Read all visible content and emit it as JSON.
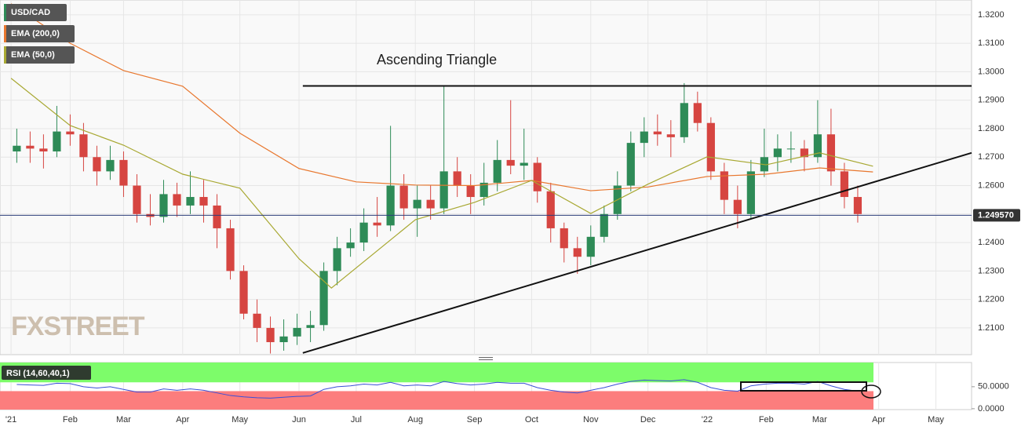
{
  "chart_data": {
    "type": "candlestick",
    "candles": {
      "name": "USD/CAD",
      "legend_color": "#2e8b57",
      "up_color": "#2e8b57",
      "down_color": "#d64541",
      "x": [
        3,
        10,
        17,
        24,
        31,
        38,
        45,
        52,
        59,
        66,
        73,
        80,
        87,
        94,
        101,
        108,
        115,
        122,
        129,
        136,
        143,
        150,
        157,
        164,
        171,
        178,
        185,
        192,
        199,
        206,
        213,
        220,
        227,
        234,
        241,
        248,
        255,
        262,
        269,
        276,
        283,
        290,
        297,
        304,
        311,
        318,
        325,
        332,
        339,
        346,
        353,
        360,
        367,
        374,
        381,
        388,
        395,
        402,
        409,
        416,
        423,
        430,
        437,
        444
      ],
      "open": [
        1.272,
        1.274,
        1.273,
        1.272,
        1.279,
        1.278,
        1.27,
        1.265,
        1.269,
        1.26,
        1.25,
        1.249,
        1.257,
        1.253,
        1.256,
        1.253,
        1.245,
        1.23,
        1.215,
        1.21,
        1.205,
        1.207,
        1.21,
        1.211,
        1.23,
        1.238,
        1.24,
        1.247,
        1.246,
        1.26,
        1.252,
        1.255,
        1.252,
        1.265,
        1.26,
        1.256,
        1.261,
        1.269,
        1.267,
        1.268,
        1.258,
        1.245,
        1.238,
        1.235,
        1.242,
        1.25,
        1.26,
        1.275,
        1.279,
        1.278,
        1.277,
        1.289,
        1.282,
        1.265,
        1.255,
        1.25,
        1.265,
        1.27,
        1.273,
        1.273,
        1.27,
        1.278,
        1.265,
        1.256
      ],
      "high": [
        1.28,
        1.279,
        1.278,
        1.288,
        1.285,
        1.282,
        1.274,
        1.274,
        1.272,
        1.264,
        1.257,
        1.262,
        1.261,
        1.265,
        1.262,
        1.257,
        1.248,
        1.232,
        1.22,
        1.214,
        1.213,
        1.215,
        1.216,
        1.233,
        1.242,
        1.245,
        1.252,
        1.256,
        1.281,
        1.264,
        1.26,
        1.26,
        1.295,
        1.27,
        1.264,
        1.268,
        1.276,
        1.29,
        1.28,
        1.27,
        1.261,
        1.247,
        1.242,
        1.246,
        1.253,
        1.265,
        1.279,
        1.284,
        1.285,
        1.283,
        1.296,
        1.293,
        1.284,
        1.268,
        1.26,
        1.269,
        1.28,
        1.278,
        1.279,
        1.276,
        1.29,
        1.287,
        1.268,
        1.26
      ],
      "low": [
        1.268,
        1.268,
        1.266,
        1.27,
        1.274,
        1.265,
        1.26,
        1.262,
        1.256,
        1.247,
        1.246,
        1.247,
        1.249,
        1.25,
        1.247,
        1.238,
        1.227,
        1.213,
        1.205,
        1.201,
        1.202,
        1.204,
        1.205,
        1.209,
        1.225,
        1.235,
        1.237,
        1.242,
        1.244,
        1.248,
        1.242,
        1.248,
        1.25,
        1.256,
        1.25,
        1.253,
        1.258,
        1.264,
        1.262,
        1.254,
        1.24,
        1.233,
        1.229,
        1.232,
        1.24,
        1.248,
        1.258,
        1.27,
        1.274,
        1.27,
        1.275,
        1.279,
        1.262,
        1.25,
        1.245,
        1.248,
        1.263,
        1.265,
        1.268,
        1.265,
        1.268,
        1.26,
        1.252,
        1.247
      ],
      "close": [
        1.274,
        1.273,
        1.272,
        1.279,
        1.278,
        1.27,
        1.265,
        1.269,
        1.26,
        1.25,
        1.249,
        1.257,
        1.253,
        1.256,
        1.253,
        1.245,
        1.23,
        1.215,
        1.21,
        1.205,
        1.207,
        1.21,
        1.211,
        1.23,
        1.238,
        1.24,
        1.247,
        1.246,
        1.26,
        1.252,
        1.255,
        1.252,
        1.265,
        1.26,
        1.256,
        1.261,
        1.269,
        1.267,
        1.268,
        1.258,
        1.245,
        1.238,
        1.235,
        1.242,
        1.25,
        1.26,
        1.275,
        1.279,
        1.278,
        1.277,
        1.289,
        1.282,
        1.265,
        1.255,
        1.25,
        1.265,
        1.27,
        1.273,
        1.273,
        1.27,
        1.278,
        1.265,
        1.256,
        1.25
      ]
    },
    "series": [
      {
        "name": "EMA (200,0)",
        "color": "#e8772e",
        "x": [
          0,
          31,
          59,
          90,
          120,
          151,
          181,
          212,
          243,
          273,
          304,
          334,
          365,
          396,
          424,
          452
        ],
        "values": [
          1.3239,
          1.31,
          1.3004,
          1.2949,
          1.2784,
          1.266,
          1.2613,
          1.2602,
          1.26,
          1.2618,
          1.2582,
          1.2595,
          1.2632,
          1.264,
          1.2662,
          1.2648
        ]
      },
      {
        "name": "EMA (50,0)",
        "color": "#a8a832",
        "x": [
          0,
          31,
          59,
          90,
          120,
          151,
          168,
          212,
          243,
          273,
          304,
          334,
          365,
          396,
          424,
          452
        ],
        "values": [
          1.2977,
          1.2811,
          1.2742,
          1.264,
          1.2591,
          1.2343,
          1.224,
          1.248,
          1.2541,
          1.2618,
          1.2502,
          1.2605,
          1.2701,
          1.2673,
          1.2715,
          1.2668
        ]
      }
    ],
    "xlim": [
      -5.8,
      503.7
    ],
    "xticks": [
      {
        "value": 0,
        "label": "'21"
      },
      {
        "value": 31,
        "label": "Feb"
      },
      {
        "value": 59,
        "label": "Mar"
      },
      {
        "value": 90,
        "label": "Apr"
      },
      {
        "value": 120,
        "label": "May"
      },
      {
        "value": 151,
        "label": "Jun"
      },
      {
        "value": 181,
        "label": "Jul"
      },
      {
        "value": 212,
        "label": "Aug"
      },
      {
        "value": 243,
        "label": "Sep"
      },
      {
        "value": 273,
        "label": "Oct"
      },
      {
        "value": 304,
        "label": "Nov"
      },
      {
        "value": 334,
        "label": "Dec"
      },
      {
        "value": 365,
        "label": "'22"
      },
      {
        "value": 396,
        "label": "Feb"
      },
      {
        "value": 424,
        "label": "Mar"
      },
      {
        "value": 455,
        "label": "Apr"
      },
      {
        "value": 485,
        "label": "May"
      }
    ],
    "ylim": [
      1.2006,
      1.3252
    ],
    "yticks": [
      {
        "value": 1.21,
        "label": "1.2100"
      },
      {
        "value": 1.22,
        "label": "1.2200"
      },
      {
        "value": 1.23,
        "label": "1.2300"
      },
      {
        "value": 1.24,
        "label": "1.2400"
      },
      {
        "value": 1.25,
        "label": "1.2500"
      },
      {
        "value": 1.26,
        "label": "1.2600"
      },
      {
        "value": 1.27,
        "label": "1.2700"
      },
      {
        "value": 1.28,
        "label": "1.2800"
      },
      {
        "value": 1.29,
        "label": "1.2900"
      },
      {
        "value": 1.3,
        "label": "1.3000"
      },
      {
        "value": 1.31,
        "label": "1.3100"
      },
      {
        "value": 1.32,
        "label": "1.3200"
      }
    ],
    "grid": true,
    "last_price": {
      "value": 1.24957,
      "label": "1.249570"
    },
    "annotation": "Ascending Triangle",
    "resistance": {
      "x": [
        153,
        503.7
      ],
      "values": [
        1.295,
        1.295
      ]
    },
    "support": {
      "x": [
        153,
        503.7
      ],
      "values": [
        1.2012,
        1.2715
      ]
    },
    "watermark": "FXSTREET",
    "rsi": {
      "title": "RSI (14,60,40,1)",
      "color": "#3a4fd8",
      "upper_color": "#7dfc6a",
      "lower_color": "#fc7d7d",
      "upper": 60,
      "lower": 40,
      "ylim": [
        -2,
        105
      ],
      "yticks": [
        {
          "value": 50,
          "label": "50.0000"
        },
        {
          "value": 0,
          "label": "0.0000"
        }
      ],
      "values": [
        55,
        54,
        53,
        58,
        57,
        50,
        47,
        50,
        44,
        38,
        38,
        45,
        42,
        45,
        42,
        36,
        30,
        27,
        25,
        24,
        26,
        28,
        29,
        44,
        50,
        52,
        56,
        54,
        60,
        52,
        54,
        52,
        62,
        57,
        54,
        56,
        60,
        58,
        58,
        48,
        42,
        38,
        36,
        42,
        48,
        56,
        62,
        65,
        64,
        63,
        66,
        60,
        48,
        42,
        40,
        52,
        56,
        58,
        58,
        56,
        62,
        52,
        44,
        40
      ]
    }
  }
}
